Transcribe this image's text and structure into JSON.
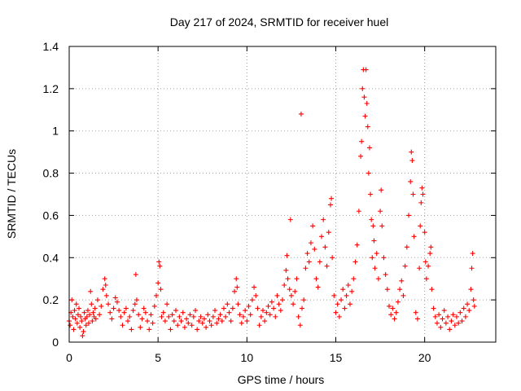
{
  "chart_data": {
    "type": "scatter",
    "title": "Day 217 of 2024, SRMTID for receiver huel",
    "xlabel": "GPS time / hours",
    "ylabel": "SRMTID / TECUs",
    "xlim": [
      0,
      24
    ],
    "ylim": [
      0,
      1.4
    ],
    "xticks": [
      0,
      5,
      10,
      15,
      20
    ],
    "xtick_labels": [
      "0",
      "5",
      "10",
      "15",
      "20"
    ],
    "yticks": [
      0,
      0.2,
      0.4,
      0.6,
      0.8,
      1,
      1.2,
      1.4
    ],
    "ytick_labels": [
      "0",
      "0.2",
      "0.4",
      "0.6",
      "0.8",
      "1",
      "1.2",
      "1.4"
    ],
    "grid": true,
    "marker": "plus",
    "color": "#ff0000",
    "series": [
      {
        "name": "SRMTID",
        "points": [
          [
            0.0,
            0.1
          ],
          [
            0.05,
            0.08
          ],
          [
            0.1,
            0.14
          ],
          [
            0.15,
            0.2
          ],
          [
            0.2,
            0.12
          ],
          [
            0.25,
            0.06
          ],
          [
            0.3,
            0.15
          ],
          [
            0.35,
            0.11
          ],
          [
            0.4,
            0.18
          ],
          [
            0.45,
            0.09
          ],
          [
            0.5,
            0.13
          ],
          [
            0.55,
            0.16
          ],
          [
            0.6,
            0.07
          ],
          [
            0.65,
            0.12
          ],
          [
            0.7,
            0.1
          ],
          [
            0.75,
            0.03
          ],
          [
            0.8,
            0.05
          ],
          [
            0.85,
            0.14
          ],
          [
            0.9,
            0.11
          ],
          [
            0.95,
            0.08
          ],
          [
            1.0,
            0.12
          ],
          [
            1.05,
            0.15
          ],
          [
            1.1,
            0.09
          ],
          [
            1.15,
            0.13
          ],
          [
            1.2,
            0.24
          ],
          [
            1.25,
            0.18
          ],
          [
            1.3,
            0.1
          ],
          [
            1.35,
            0.14
          ],
          [
            1.4,
            0.12
          ],
          [
            1.45,
            0.16
          ],
          [
            1.5,
            0.11
          ],
          [
            1.6,
            0.2
          ],
          [
            1.7,
            0.13
          ],
          [
            1.8,
            0.17
          ],
          [
            1.9,
            0.25
          ],
          [
            2.0,
            0.3
          ],
          [
            2.05,
            0.27
          ],
          [
            2.1,
            0.22
          ],
          [
            2.2,
            0.18
          ],
          [
            2.3,
            0.14
          ],
          [
            2.4,
            0.11
          ],
          [
            2.5,
            0.16
          ],
          [
            2.6,
            0.21
          ],
          [
            2.7,
            0.19
          ],
          [
            2.8,
            0.15
          ],
          [
            2.9,
            0.12
          ],
          [
            3.0,
            0.08
          ],
          [
            3.1,
            0.14
          ],
          [
            3.2,
            0.16
          ],
          [
            3.3,
            0.1
          ],
          [
            3.4,
            0.12
          ],
          [
            3.5,
            0.06
          ],
          [
            3.6,
            0.15
          ],
          [
            3.7,
            0.18
          ],
          [
            3.75,
            0.32
          ],
          [
            3.8,
            0.2
          ],
          [
            3.9,
            0.13
          ],
          [
            4.0,
            0.07
          ],
          [
            4.1,
            0.11
          ],
          [
            4.2,
            0.16
          ],
          [
            4.3,
            0.14
          ],
          [
            4.4,
            0.1
          ],
          [
            4.5,
            0.06
          ],
          [
            4.6,
            0.13
          ],
          [
            4.7,
            0.09
          ],
          [
            4.8,
            0.17
          ],
          [
            4.9,
            0.22
          ],
          [
            5.0,
            0.28
          ],
          [
            5.05,
            0.38
          ],
          [
            5.1,
            0.36
          ],
          [
            5.15,
            0.25
          ],
          [
            5.2,
            0.12
          ],
          [
            5.3,
            0.14
          ],
          [
            5.4,
            0.1
          ],
          [
            5.5,
            0.18
          ],
          [
            5.6,
            0.12
          ],
          [
            5.7,
            0.06
          ],
          [
            5.8,
            0.13
          ],
          [
            5.9,
            0.1
          ],
          [
            6.0,
            0.15
          ],
          [
            6.1,
            0.08
          ],
          [
            6.2,
            0.12
          ],
          [
            6.3,
            0.1
          ],
          [
            6.4,
            0.14
          ],
          [
            6.5,
            0.07
          ],
          [
            6.6,
            0.11
          ],
          [
            6.7,
            0.09
          ],
          [
            6.8,
            0.13
          ],
          [
            6.9,
            0.08
          ],
          [
            7.0,
            0.12
          ],
          [
            7.1,
            0.15
          ],
          [
            7.2,
            0.06
          ],
          [
            7.3,
            0.1
          ],
          [
            7.4,
            0.12
          ],
          [
            7.5,
            0.09
          ],
          [
            7.6,
            0.11
          ],
          [
            7.7,
            0.07
          ],
          [
            7.8,
            0.13
          ],
          [
            7.9,
            0.1
          ],
          [
            8.0,
            0.08
          ],
          [
            8.1,
            0.12
          ],
          [
            8.2,
            0.15
          ],
          [
            8.3,
            0.09
          ],
          [
            8.4,
            0.11
          ],
          [
            8.5,
            0.13
          ],
          [
            8.6,
            0.1
          ],
          [
            8.7,
            0.16
          ],
          [
            8.8,
            0.12
          ],
          [
            8.9,
            0.18
          ],
          [
            9.0,
            0.14
          ],
          [
            9.1,
            0.1
          ],
          [
            9.2,
            0.16
          ],
          [
            9.3,
            0.24
          ],
          [
            9.4,
            0.3
          ],
          [
            9.45,
            0.26
          ],
          [
            9.5,
            0.18
          ],
          [
            9.6,
            0.13
          ],
          [
            9.7,
            0.09
          ],
          [
            9.8,
            0.12
          ],
          [
            9.9,
            0.15
          ],
          [
            10.0,
            0.1
          ],
          [
            10.1,
            0.17
          ],
          [
            10.2,
            0.13
          ],
          [
            10.3,
            0.2
          ],
          [
            10.4,
            0.26
          ],
          [
            10.5,
            0.22
          ],
          [
            10.6,
            0.16
          ],
          [
            10.7,
            0.08
          ],
          [
            10.8,
            0.12
          ],
          [
            10.9,
            0.15
          ],
          [
            11.0,
            0.1
          ],
          [
            11.1,
            0.14
          ],
          [
            11.2,
            0.17
          ],
          [
            11.3,
            0.13
          ],
          [
            11.4,
            0.19
          ],
          [
            11.5,
            0.16
          ],
          [
            11.6,
            0.12
          ],
          [
            11.7,
            0.22
          ],
          [
            11.8,
            0.18
          ],
          [
            11.9,
            0.15
          ],
          [
            12.0,
            0.2
          ],
          [
            12.1,
            0.27
          ],
          [
            12.2,
            0.34
          ],
          [
            12.25,
            0.41
          ],
          [
            12.3,
            0.3
          ],
          [
            12.4,
            0.25
          ],
          [
            12.45,
            0.58
          ],
          [
            12.5,
            0.22
          ],
          [
            12.6,
            0.18
          ],
          [
            12.7,
            0.24
          ],
          [
            12.8,
            0.3
          ],
          [
            12.9,
            0.12
          ],
          [
            13.0,
            0.08
          ],
          [
            13.05,
            1.08
          ],
          [
            13.1,
            0.16
          ],
          [
            13.2,
            0.2
          ],
          [
            13.3,
            0.35
          ],
          [
            13.4,
            0.42
          ],
          [
            13.5,
            0.38
          ],
          [
            13.6,
            0.47
          ],
          [
            13.7,
            0.55
          ],
          [
            13.8,
            0.44
          ],
          [
            13.9,
            0.3
          ],
          [
            14.0,
            0.26
          ],
          [
            14.1,
            0.38
          ],
          [
            14.2,
            0.5
          ],
          [
            14.3,
            0.58
          ],
          [
            14.4,
            0.45
          ],
          [
            14.5,
            0.36
          ],
          [
            14.6,
            0.52
          ],
          [
            14.7,
            0.65
          ],
          [
            14.75,
            0.68
          ],
          [
            14.8,
            0.4
          ],
          [
            14.9,
            0.22
          ],
          [
            15.0,
            0.14
          ],
          [
            15.1,
            0.18
          ],
          [
            15.2,
            0.12
          ],
          [
            15.3,
            0.2
          ],
          [
            15.4,
            0.25
          ],
          [
            15.5,
            0.16
          ],
          [
            15.6,
            0.22
          ],
          [
            15.7,
            0.27
          ],
          [
            15.8,
            0.18
          ],
          [
            15.9,
            0.24
          ],
          [
            16.0,
            0.3
          ],
          [
            16.1,
            0.38
          ],
          [
            16.2,
            0.46
          ],
          [
            16.3,
            0.62
          ],
          [
            16.4,
            0.88
          ],
          [
            16.45,
            0.95
          ],
          [
            16.5,
            1.2
          ],
          [
            16.55,
            1.29
          ],
          [
            16.6,
            1.16
          ],
          [
            16.65,
            1.07
          ],
          [
            16.7,
            1.29
          ],
          [
            16.75,
            1.13
          ],
          [
            16.8,
            1.02
          ],
          [
            16.85,
            0.8
          ],
          [
            16.9,
            0.92
          ],
          [
            16.95,
            0.7
          ],
          [
            17.0,
            0.58
          ],
          [
            17.05,
            0.4
          ],
          [
            17.1,
            0.55
          ],
          [
            17.15,
            0.48
          ],
          [
            17.2,
            0.35
          ],
          [
            17.3,
            0.42
          ],
          [
            17.4,
            0.3
          ],
          [
            17.5,
            0.62
          ],
          [
            17.55,
            0.72
          ],
          [
            17.6,
            0.55
          ],
          [
            17.7,
            0.4
          ],
          [
            17.8,
            0.32
          ],
          [
            17.9,
            0.25
          ],
          [
            18.0,
            0.17
          ],
          [
            18.1,
            0.13
          ],
          [
            18.2,
            0.16
          ],
          [
            18.3,
            0.11
          ],
          [
            18.4,
            0.14
          ],
          [
            18.5,
            0.19
          ],
          [
            18.6,
            0.25
          ],
          [
            18.7,
            0.29
          ],
          [
            18.8,
            0.22
          ],
          [
            18.9,
            0.36
          ],
          [
            19.0,
            0.45
          ],
          [
            19.1,
            0.6
          ],
          [
            19.2,
            0.76
          ],
          [
            19.25,
            0.9
          ],
          [
            19.3,
            0.86
          ],
          [
            19.35,
            0.7
          ],
          [
            19.4,
            0.5
          ],
          [
            19.5,
            0.14
          ],
          [
            19.6,
            0.11
          ],
          [
            19.7,
            0.35
          ],
          [
            19.75,
            0.55
          ],
          [
            19.8,
            0.66
          ],
          [
            19.85,
            0.73
          ],
          [
            19.9,
            0.7
          ],
          [
            20.0,
            0.52
          ],
          [
            20.05,
            0.38
          ],
          [
            20.1,
            0.3
          ],
          [
            20.2,
            0.36
          ],
          [
            20.3,
            0.42
          ],
          [
            20.35,
            0.45
          ],
          [
            20.4,
            0.25
          ],
          [
            20.5,
            0.16
          ],
          [
            20.6,
            0.12
          ],
          [
            20.7,
            0.09
          ],
          [
            20.8,
            0.13
          ],
          [
            20.9,
            0.07
          ],
          [
            21.0,
            0.11
          ],
          [
            21.1,
            0.15
          ],
          [
            21.2,
            0.09
          ],
          [
            21.3,
            0.12
          ],
          [
            21.4,
            0.06
          ],
          [
            21.5,
            0.1
          ],
          [
            21.6,
            0.13
          ],
          [
            21.7,
            0.08
          ],
          [
            21.8,
            0.12
          ],
          [
            21.9,
            0.09
          ],
          [
            22.0,
            0.14
          ],
          [
            22.1,
            0.1
          ],
          [
            22.2,
            0.16
          ],
          [
            22.3,
            0.12
          ],
          [
            22.4,
            0.18
          ],
          [
            22.5,
            0.15
          ],
          [
            22.6,
            0.25
          ],
          [
            22.65,
            0.35
          ],
          [
            22.7,
            0.42
          ],
          [
            22.75,
            0.2
          ],
          [
            22.8,
            0.17
          ]
        ]
      }
    ]
  }
}
